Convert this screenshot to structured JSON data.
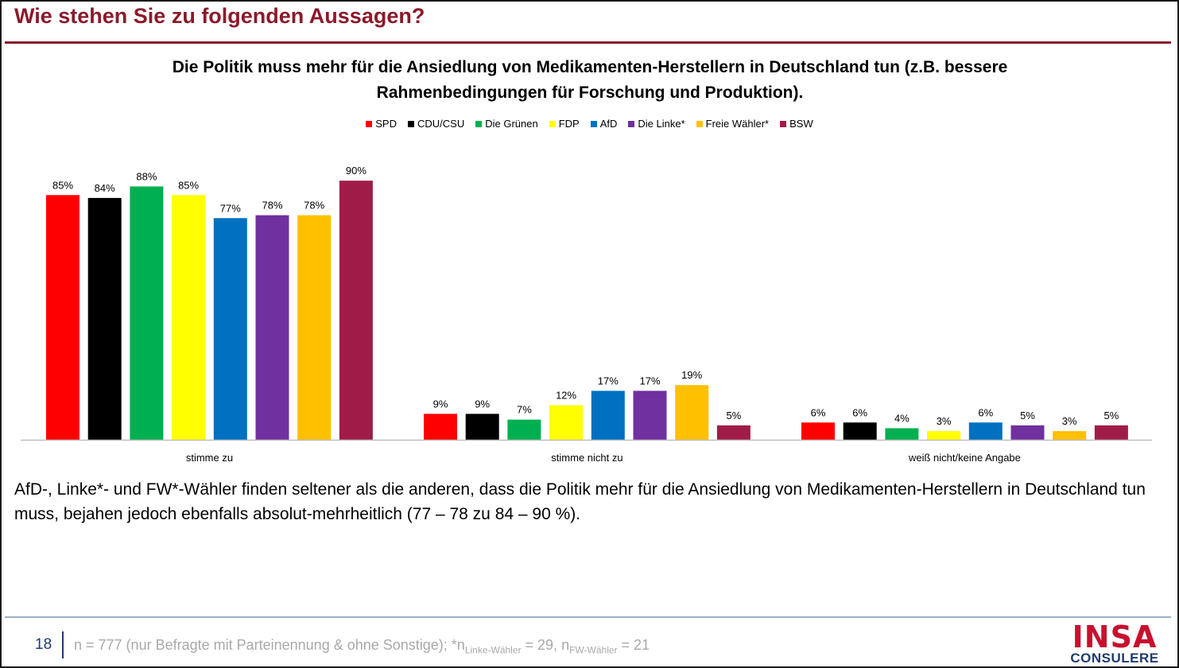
{
  "slide": {
    "title": "Wie stehen Sie zu folgenden Aussagen?",
    "question_line1": "Die Politik muss mehr für die Ansiedlung von Medikamenten-Herstellern in Deutschland tun (z.B. bessere",
    "question_line2": "Rahmenbedingungen für Forschung und Produktion).",
    "summary": "AfD-, Linke*- und FW*-Wähler finden seltener als die anderen, dass die Politik mehr für die Ansiedlung von Medikamenten-Herstellern in Deutschland tun muss, bejahen jedoch ebenfalls absolut-mehrheitlich (77 – 78 zu 84 – 90 %).",
    "page_number": "18",
    "footnote_main": "n = 777 (nur Befragte mit Parteinennung & ohne Sonstige); *n",
    "footnote_sub1": "Linke-Wähler",
    "footnote_mid": " = 29, n",
    "footnote_sub2": "FW-Wähler",
    "footnote_end": " = 21",
    "logo_top": "INSA",
    "logo_bottom": "CONSULERE"
  },
  "chart_data": {
    "type": "bar",
    "categories": [
      "stimme zu",
      "stimme nicht zu",
      "weiß nicht/keine Angabe"
    ],
    "ylim": [
      0,
      100
    ],
    "value_suffix": "%",
    "grid": false,
    "legend_position": "top",
    "series": [
      {
        "name": "SPD",
        "color": "#ff0000",
        "values": [
          85,
          9,
          6
        ]
      },
      {
        "name": "CDU/CSU",
        "color": "#000000",
        "values": [
          84,
          9,
          6
        ]
      },
      {
        "name": "Die Grünen",
        "color": "#00b050",
        "values": [
          88,
          7,
          4
        ]
      },
      {
        "name": "FDP",
        "color": "#ffff00",
        "values": [
          85,
          12,
          3
        ]
      },
      {
        "name": "AfD",
        "color": "#0070c0",
        "values": [
          77,
          17,
          6
        ]
      },
      {
        "name": "Die Linke*",
        "color": "#7030a0",
        "values": [
          78,
          17,
          5
        ]
      },
      {
        "name": "Freie Wähler*",
        "color": "#ffc000",
        "values": [
          78,
          19,
          3
        ]
      },
      {
        "name": "BSW",
        "color": "#a01c48",
        "values": [
          90,
          5,
          5
        ]
      }
    ]
  }
}
